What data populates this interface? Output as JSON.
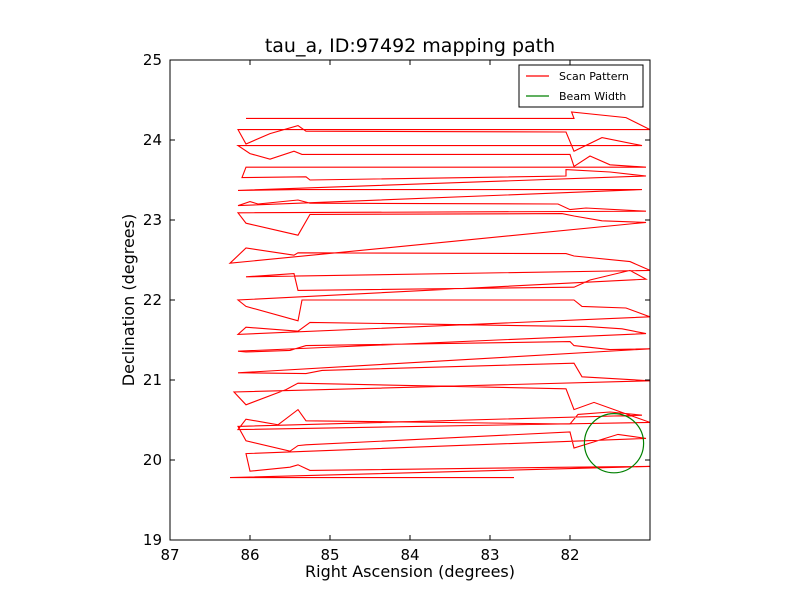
{
  "chart_data": {
    "type": "line",
    "title": "tau_a, ID:97492 mapping path",
    "xlabel": "Right Ascension (degrees)",
    "ylabel": "Declination (degrees)",
    "xlim": [
      87,
      81.0
    ],
    "ylim": [
      19,
      25
    ],
    "x_inverted": true,
    "xticks": [
      87,
      86,
      85,
      84,
      83,
      82
    ],
    "yticks": [
      19,
      20,
      21,
      22,
      23,
      24,
      25
    ],
    "grid": false,
    "legend": {
      "position": "upper right",
      "entries": [
        "Scan Pattern",
        "Beam Width"
      ]
    },
    "series": [
      {
        "name": "Scan Pattern",
        "color": "#ff0000",
        "type": "line",
        "x": [
          86.05,
          81.95,
          81.98,
          81.3,
          81.0,
          86.15,
          86.05,
          85.75,
          85.4,
          85.3,
          82.05,
          81.95,
          81.6,
          81.1,
          86.15,
          86.0,
          85.75,
          85.45,
          85.35,
          82.0,
          81.95,
          81.75,
          81.5,
          81.05,
          86.05,
          86.1,
          85.3,
          85.25,
          82.05,
          82.05,
          81.5,
          81.05,
          86.15,
          85.4,
          81.1,
          86.15,
          86.0,
          85.9,
          85.4,
          85.25,
          82.15,
          82.0,
          81.8,
          81.05,
          86.15,
          86.05,
          85.4,
          85.25,
          82.1,
          81.95,
          81.6,
          81.05,
          86.25,
          86.05,
          85.45,
          85.4,
          82.05,
          81.95,
          81.25,
          81.0,
          86.05,
          85.45,
          85.4,
          81.95,
          81.75,
          81.25,
          81.05,
          86.15,
          86.05,
          85.4,
          85.35,
          81.95,
          81.85,
          81.3,
          81.0,
          86.15,
          86.05,
          85.4,
          85.25,
          81.95,
          81.8,
          81.35,
          81.05,
          86.15,
          86.05,
          85.5,
          85.3,
          82.0,
          81.95,
          81.5,
          81.0,
          86.15,
          86.05,
          85.3,
          85.1,
          81.95,
          81.85,
          81.0,
          86.2,
          86.05,
          85.55,
          85.4,
          82.05,
          81.95,
          81.7,
          81.0,
          86.15,
          86.05,
          85.65,
          85.4,
          85.3,
          82.0,
          81.9,
          81.5,
          81.1,
          86.15,
          86.05,
          85.5,
          85.4,
          85.3,
          82.0,
          81.95,
          81.4,
          81.05,
          86.05,
          86.0,
          85.5,
          85.4,
          85.25,
          82.0,
          81.0,
          86.25,
          82.7
        ],
        "y": [
          24.27,
          24.27,
          24.35,
          24.28,
          24.13,
          24.13,
          23.95,
          24.08,
          24.18,
          24.11,
          24.1,
          23.86,
          24.03,
          23.93,
          23.93,
          23.83,
          23.76,
          23.86,
          23.82,
          23.82,
          23.67,
          23.8,
          23.69,
          23.66,
          23.66,
          23.53,
          23.54,
          23.5,
          23.55,
          23.63,
          23.6,
          23.55,
          23.37,
          23.38,
          23.38,
          23.18,
          23.23,
          23.2,
          23.25,
          23.21,
          23.2,
          23.13,
          23.15,
          23.11,
          23.09,
          22.96,
          22.81,
          23.07,
          23.08,
          23.05,
          22.99,
          22.97,
          22.46,
          22.65,
          22.56,
          22.59,
          22.58,
          22.55,
          22.48,
          22.37,
          22.29,
          22.33,
          22.12,
          22.16,
          22.25,
          22.37,
          22.26,
          22.0,
          21.92,
          21.74,
          22.0,
          22.0,
          21.92,
          21.9,
          21.79,
          21.57,
          21.66,
          21.61,
          21.72,
          21.67,
          21.67,
          21.64,
          21.58,
          21.36,
          21.35,
          21.37,
          21.43,
          21.48,
          21.43,
          21.38,
          21.39,
          21.09,
          21.09,
          21.08,
          21.12,
          21.21,
          21.04,
          20.99,
          20.85,
          20.69,
          20.88,
          20.96,
          20.89,
          20.63,
          20.72,
          20.47,
          20.38,
          20.51,
          20.44,
          20.63,
          20.49,
          20.45,
          20.57,
          20.6,
          20.56,
          20.42,
          20.24,
          20.11,
          20.18,
          20.19,
          20.35,
          20.15,
          20.32,
          20.27,
          20.08,
          19.86,
          19.91,
          19.94,
          19.87,
          19.91,
          19.92,
          19.78,
          19.78
        ]
      },
      {
        "name": "Beam Width",
        "color": "#008000",
        "type": "circle",
        "center": [
          81.45,
          20.21
        ],
        "radius_ra": 0.37,
        "radius_dec": 0.37
      }
    ]
  }
}
